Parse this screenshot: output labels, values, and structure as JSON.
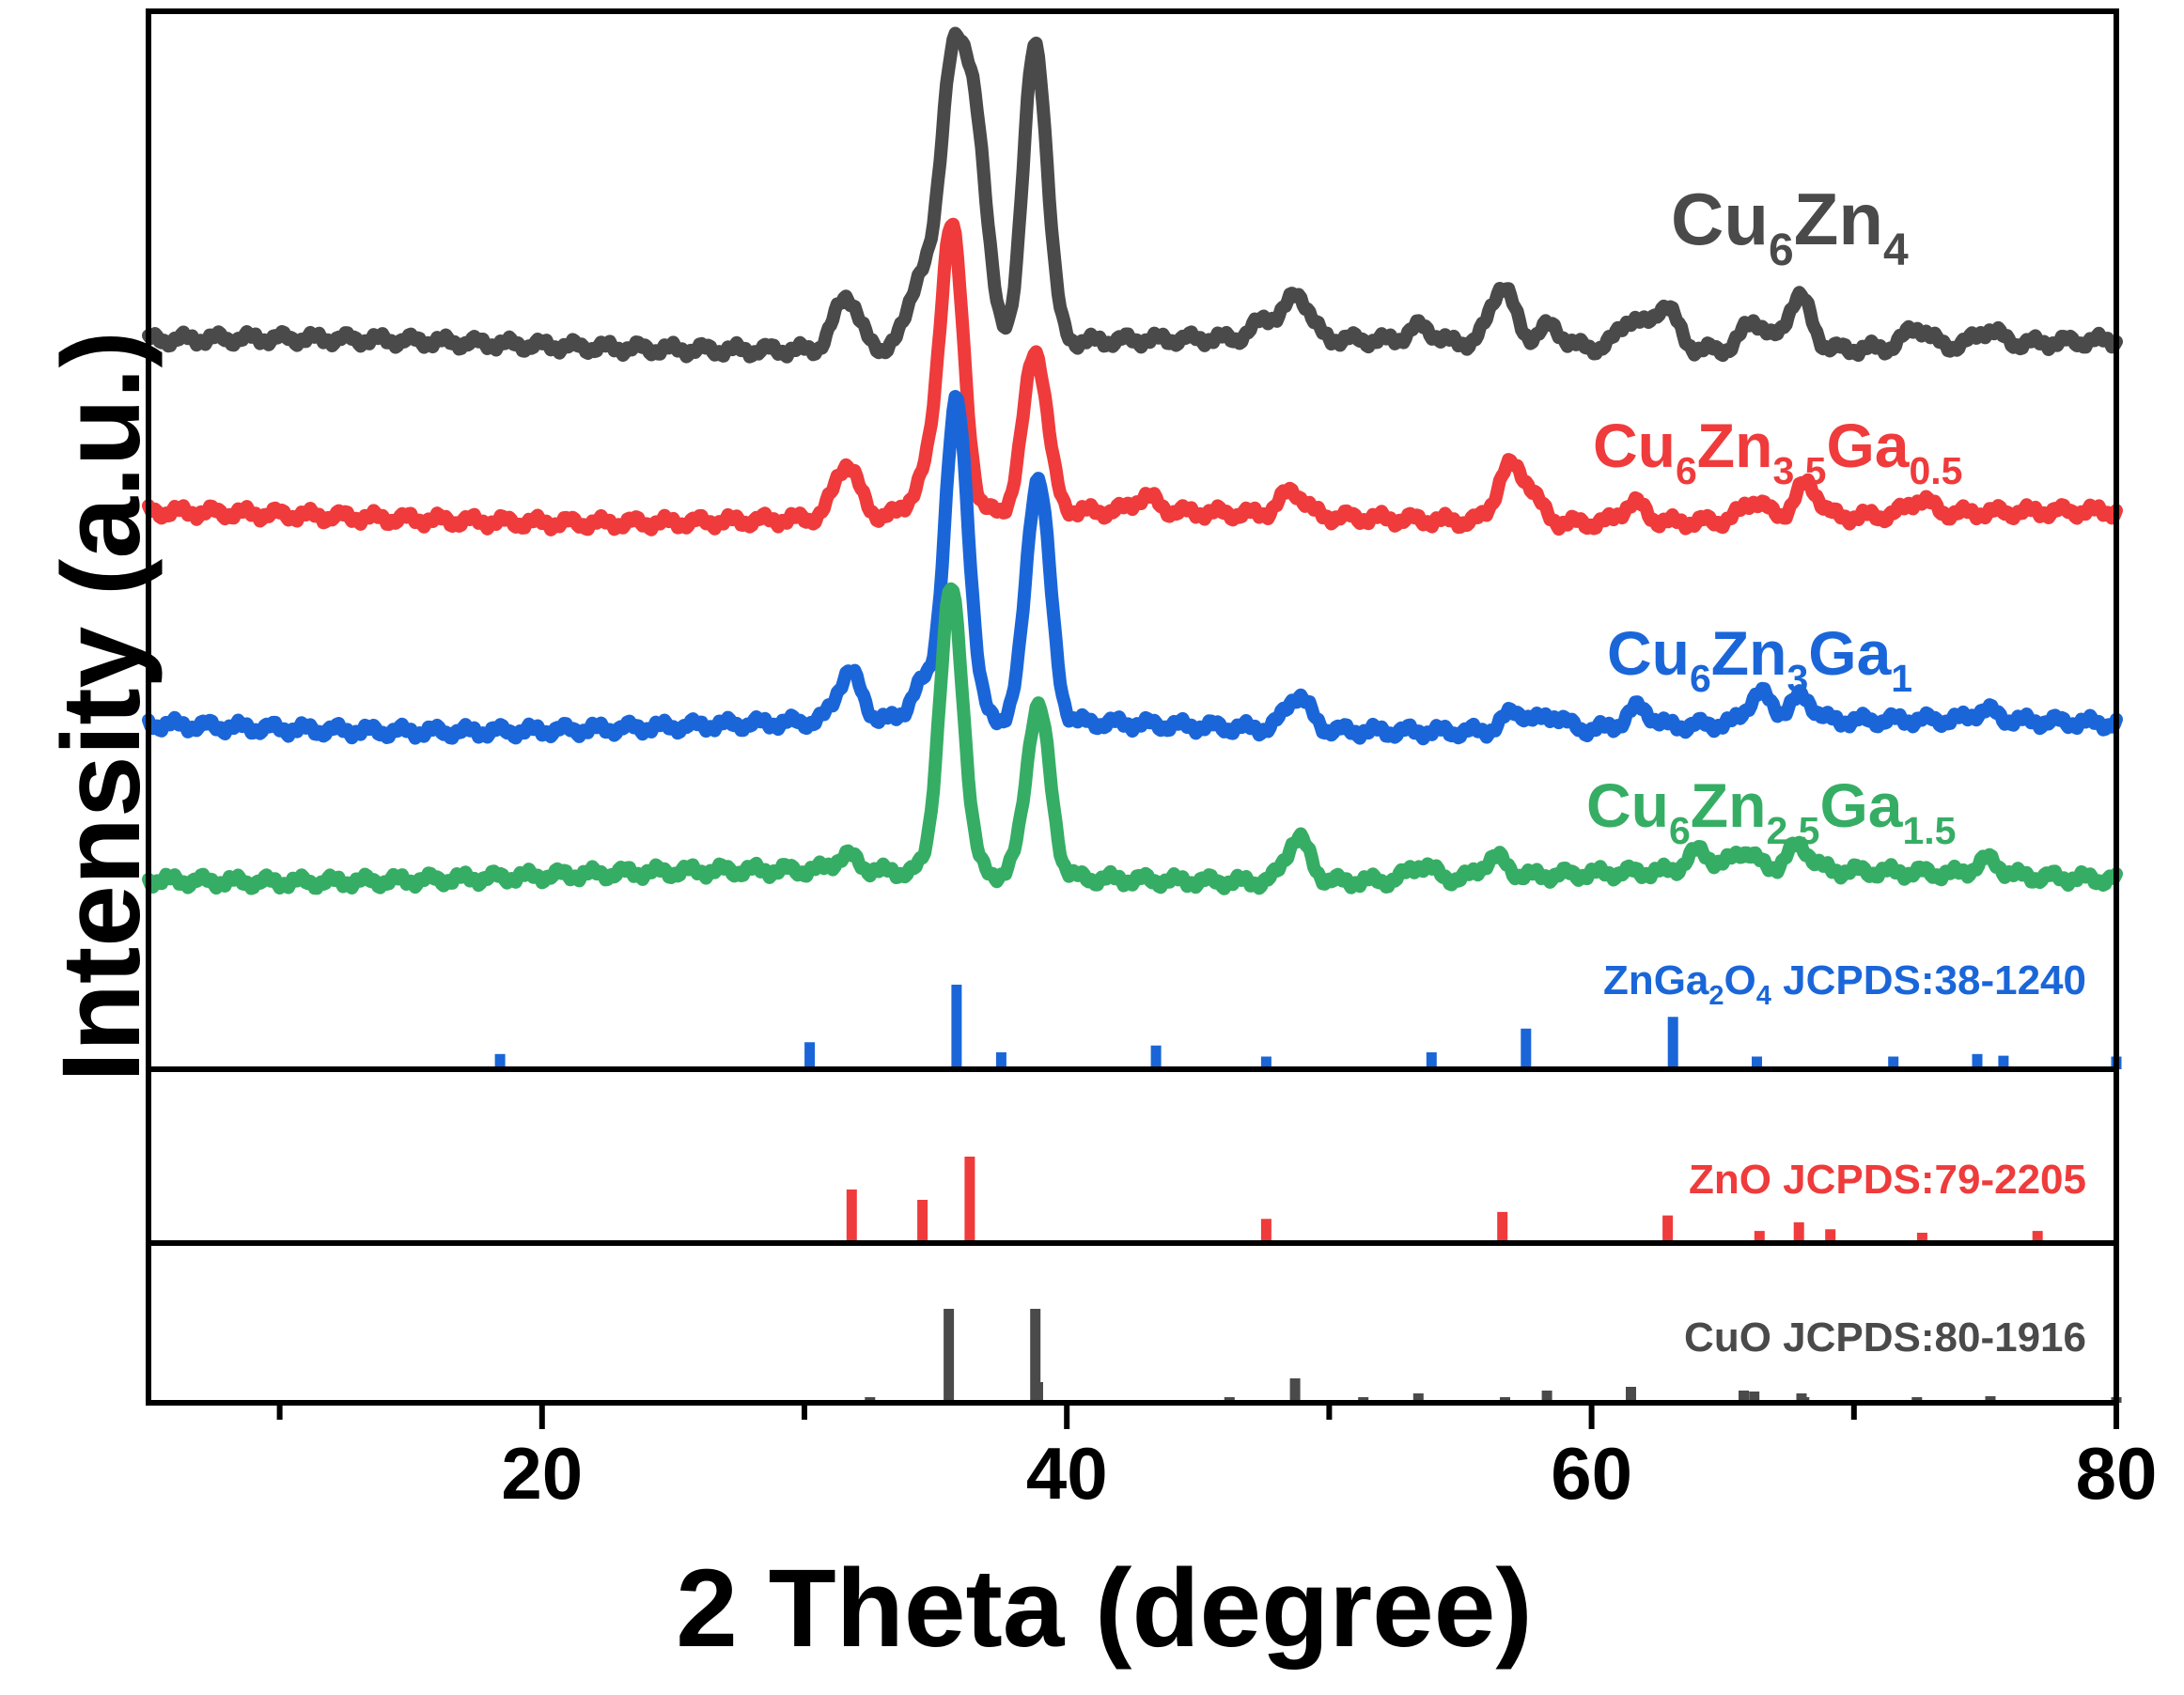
{
  "chart_data": {
    "type": "line",
    "xlabel": "2 Theta (degree)",
    "ylabel": "Intensity (a.u.)",
    "xlim": [
      5,
      80
    ],
    "xticks": [
      20,
      40,
      60,
      80
    ],
    "xtick_labels": [
      "20",
      "40",
      "60",
      "80"
    ],
    "series": [
      {
        "name": "Cu6Zn4",
        "label_parts": [
          [
            "Cu",
            ""
          ],
          [
            "6",
            "sub"
          ],
          [
            "Zn",
            ""
          ],
          [
            "4",
            "sub"
          ]
        ],
        "color": "#4a4a4a",
        "baseline": 0.03,
        "peaks": [
          [
            31.6,
            0.11
          ],
          [
            34.4,
            0.14
          ],
          [
            35.6,
            0.55
          ],
          [
            36.5,
            0.45
          ],
          [
            38.8,
            0.61
          ],
          [
            47.6,
            0.04
          ],
          [
            48.8,
            0.09
          ],
          [
            53.5,
            0.03
          ],
          [
            56.6,
            0.12
          ],
          [
            58.4,
            0.04
          ],
          [
            61.5,
            0.06
          ],
          [
            62.8,
            0.09
          ],
          [
            66.2,
            0.06
          ],
          [
            67.9,
            0.11
          ],
          [
            72.4,
            0.04
          ],
          [
            75.1,
            0.03
          ]
        ]
      },
      {
        "name": "Cu6Zn3.5Ga0.5",
        "label_parts": [
          [
            "Cu",
            ""
          ],
          [
            "6",
            "sub"
          ],
          [
            "Zn",
            ""
          ],
          [
            "3.5",
            "sub"
          ],
          [
            "Ga",
            ""
          ],
          [
            "0.5",
            "sub"
          ]
        ],
        "color": "#ef3b3b",
        "baseline": 0.03,
        "peaks": [
          [
            31.6,
            0.11
          ],
          [
            34.5,
            0.06
          ],
          [
            35.6,
            0.59
          ],
          [
            38.8,
            0.33
          ],
          [
            43,
            0.03
          ],
          [
            48.6,
            0.05
          ],
          [
            56.8,
            0.1
          ],
          [
            57.6,
            0.06
          ],
          [
            61.6,
            0.04
          ],
          [
            66.2,
            0.04
          ],
          [
            68.2,
            0.07
          ],
          [
            72.5,
            0.03
          ]
        ]
      },
      {
        "name": "Cu6Zn3Ga1",
        "label_parts": [
          [
            "Cu",
            ""
          ],
          [
            "6",
            "sub"
          ],
          [
            "Zn",
            ""
          ],
          [
            "3",
            "sub"
          ],
          [
            "Ga",
            ""
          ],
          [
            "1",
            "sub"
          ]
        ],
        "color": "#1a66d9",
        "baseline": 0.03,
        "peaks": [
          [
            31.7,
            0.1
          ],
          [
            34.5,
            0.07
          ],
          [
            35.8,
            0.65
          ],
          [
            38.9,
            0.5
          ],
          [
            48.8,
            0.07
          ],
          [
            57.1,
            0.04
          ],
          [
            58.5,
            0.03
          ],
          [
            61.8,
            0.04
          ],
          [
            66.4,
            0.06
          ],
          [
            68,
            0.05
          ],
          [
            75,
            0.02
          ]
        ]
      },
      {
        "name": "Cu6Zn2.5Ga1.5",
        "label_parts": [
          [
            "Cu",
            ""
          ],
          [
            "6",
            "sub"
          ],
          [
            "Zn",
            ""
          ],
          [
            "2.5",
            "sub"
          ],
          [
            "Ga",
            ""
          ],
          [
            "1.5",
            "sub"
          ]
        ],
        "color": "#36ad64",
        "baseline": 0.03,
        "peaks": [
          [
            31.6,
            0.03
          ],
          [
            35.6,
            0.58
          ],
          [
            38.9,
            0.35
          ],
          [
            48.8,
            0.09
          ],
          [
            53.5,
            0.03
          ],
          [
            56.3,
            0.04
          ],
          [
            64.1,
            0.04
          ],
          [
            65.8,
            0.04
          ],
          [
            67.9,
            0.05
          ],
          [
            75.1,
            0.03
          ]
        ]
      }
    ],
    "references": [
      {
        "name": "ZnGa2O4 JCPDS:38-1240",
        "label_parts": [
          [
            "ZnGa",
            ""
          ],
          [
            "2",
            "sub"
          ],
          [
            "O",
            ""
          ],
          [
            "4",
            "sub"
          ],
          [
            " JCPDS:38-1240",
            ""
          ]
        ],
        "color": "#1a66d9",
        "lines": [
          [
            18.4,
            0.18
          ],
          [
            30.2,
            0.32
          ],
          [
            35.8,
            1.0
          ],
          [
            37.5,
            0.2
          ],
          [
            43.4,
            0.28
          ],
          [
            47.6,
            0.15
          ],
          [
            53.9,
            0.2
          ],
          [
            57.5,
            0.48
          ],
          [
            63.1,
            0.62
          ],
          [
            66.3,
            0.15
          ],
          [
            71.5,
            0.15
          ],
          [
            74.7,
            0.18
          ],
          [
            75.7,
            0.16
          ],
          [
            80,
            0.15
          ]
        ]
      },
      {
        "name": "ZnO JCPDS:79-2205",
        "label_parts": [
          [
            "ZnO JCPDS:79-2205",
            ""
          ]
        ],
        "color": "#ef3b3b",
        "lines": [
          [
            31.8,
            0.62
          ],
          [
            34.5,
            0.5
          ],
          [
            36.3,
            1.0
          ],
          [
            47.6,
            0.28
          ],
          [
            56.6,
            0.36
          ],
          [
            62.9,
            0.32
          ],
          [
            66.4,
            0.14
          ],
          [
            67.9,
            0.24
          ],
          [
            69.1,
            0.16
          ],
          [
            72.6,
            0.12
          ],
          [
            77,
            0.14
          ]
        ]
      },
      {
        "name": "CuO JCPDS:80-1916",
        "label_parts": [
          [
            "CuO JCPDS:80-1916",
            ""
          ]
        ],
        "color": "#4a4a4a",
        "lines": [
          [
            32.5,
            0.06
          ],
          [
            35.5,
            1.0
          ],
          [
            38.8,
            1.0
          ],
          [
            38.9,
            0.22
          ],
          [
            46.2,
            0.03
          ],
          [
            48.7,
            0.26
          ],
          [
            51.3,
            0.03
          ],
          [
            53.4,
            0.1
          ],
          [
            56.7,
            0.03
          ],
          [
            58.3,
            0.13
          ],
          [
            61.5,
            0.17
          ],
          [
            65.8,
            0.13
          ],
          [
            66.2,
            0.12
          ],
          [
            68,
            0.1
          ],
          [
            68.1,
            0.06
          ],
          [
            72.4,
            0.05
          ],
          [
            75.2,
            0.07
          ],
          [
            80,
            0.04
          ]
        ]
      }
    ]
  }
}
